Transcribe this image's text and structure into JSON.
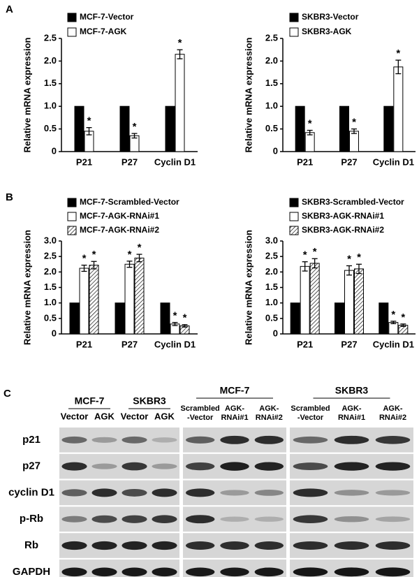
{
  "panel_labels": [
    "A",
    "B",
    "C"
  ],
  "chart_data": [
    {
      "type": "bar",
      "ylabel": "Relative mRNA expression",
      "categories": [
        "P21",
        "P27",
        "Cyclin D1"
      ],
      "ylim": [
        0,
        2.5
      ],
      "yticks": [
        0,
        0.5,
        {
          "value": 1,
          "label": "1.0"
        },
        1.5,
        {
          "value": 2,
          "label": "2.0"
        },
        2.5
      ],
      "legend": "upper left",
      "series": [
        {
          "name": "MCF-7-Vector",
          "color": "#000000",
          "values": [
            1,
            1,
            1
          ]
        },
        {
          "name": "MCF-7-AGK",
          "color": "#ffffff",
          "values": [
            0.45,
            0.35,
            2.15
          ],
          "errors": [
            0.08,
            0.05,
            0.1
          ],
          "markers": [
            "*",
            "*",
            "*"
          ]
        }
      ]
    },
    {
      "type": "bar",
      "ylabel": "Relative mRNA expression",
      "categories": [
        "P21",
        "P27",
        "Cyclin D1"
      ],
      "ylim": [
        0,
        2.5
      ],
      "yticks": [
        0,
        0.5,
        {
          "value": 1,
          "label": "1.0"
        },
        1.5,
        {
          "value": 2,
          "label": "2.0"
        },
        2.5
      ],
      "legend": "upper left",
      "series": [
        {
          "name": "SKBR3-Vector",
          "color": "#000000",
          "values": [
            1,
            1,
            1
          ]
        },
        {
          "name": "SKBR3-AGK",
          "color": "#ffffff",
          "values": [
            0.42,
            0.45,
            1.87
          ],
          "errors": [
            0.05,
            0.05,
            0.15
          ],
          "markers": [
            "*",
            "*",
            "*"
          ]
        }
      ]
    },
    {
      "type": "bar",
      "ylabel": "Relative mRNA expression",
      "categories": [
        "P21",
        "P27",
        "Cyclin D1"
      ],
      "ylim": [
        0,
        3
      ],
      "yticks": [
        0,
        0.5,
        {
          "value": 1,
          "label": "1.0"
        },
        1.5,
        {
          "value": 2,
          "label": "2.0"
        },
        2.5,
        {
          "value": 3,
          "label": "3.0"
        }
      ],
      "legend": "upper left",
      "series": [
        {
          "name": "MCF-7-Scrambled-Vector",
          "color": "#000000",
          "values": [
            1,
            1,
            1
          ]
        },
        {
          "name": "MCF-7-AGK-RNAi#1",
          "color": "#ffffff",
          "values": [
            2.12,
            2.25,
            0.32
          ],
          "errors": [
            0.1,
            0.1,
            0.05
          ],
          "markers": [
            "*",
            "*",
            "*"
          ]
        },
        {
          "name": "MCF-7-AGK-RNAi#2",
          "color": "#ffffff",
          "hatched": true,
          "values": [
            2.22,
            2.45,
            0.26
          ],
          "errors": [
            0.12,
            0.12,
            0.04
          ],
          "markers": [
            "*",
            "*",
            "*"
          ]
        }
      ]
    },
    {
      "type": "bar",
      "ylabel": "Relative mRNA expression",
      "categories": [
        "P21",
        "P27",
        "Cyclin D1"
      ],
      "ylim": [
        0,
        3
      ],
      "yticks": [
        0,
        0.5,
        {
          "value": 1,
          "label": "1.0"
        },
        1.5,
        {
          "value": 2,
          "label": "2.0"
        },
        2.5,
        {
          "value": 3,
          "label": "3.0"
        }
      ],
      "legend": "upper left",
      "series": [
        {
          "name": "SKBR3-Scrambled-Vector",
          "color": "#000000",
          "values": [
            1,
            1,
            1
          ]
        },
        {
          "name": "SKBR3-AGK-RNAi#1",
          "color": "#ffffff",
          "values": [
            2.18,
            2.05,
            0.37
          ],
          "errors": [
            0.15,
            0.15,
            0.04
          ],
          "markers": [
            "*",
            "*",
            "*"
          ]
        },
        {
          "name": "SKBR3-AGK-RNAi#2",
          "color": "#ffffff",
          "hatched": true,
          "values": [
            2.28,
            2.1,
            0.28
          ],
          "errors": [
            0.15,
            0.15,
            0.04
          ],
          "markers": [
            "*",
            "*",
            "*"
          ]
        }
      ]
    }
  ],
  "blot": {
    "rows": [
      "p21",
      "p27",
      "cyclin D1",
      "p-Rb",
      "Rb",
      "GAPDH"
    ],
    "blocks": [
      {
        "groups": [
          {
            "name": "MCF-7",
            "lanes": [
              [
                "Vector"
              ],
              [
                "AGK"
              ]
            ]
          },
          {
            "name": "SKBR3",
            "lanes": [
              [
                "Vector"
              ],
              [
                "AGK"
              ]
            ]
          }
        ]
      },
      {
        "groups": [
          {
            "name": "MCF-7",
            "lanes": [
              [
                "Scrambled",
                "-Vector"
              ],
              [
                "AGK-",
                "RNAi#1"
              ],
              [
                "AGK-",
                "RNAi#2"
              ]
            ]
          }
        ]
      },
      {
        "groups": [
          {
            "name": "SKBR3",
            "lanes": [
              [
                "Scrambled",
                "-Vector"
              ],
              [
                "AGK-",
                "RNAi#1"
              ],
              [
                "AGK-",
                "RNAi#2"
              ]
            ]
          }
        ]
      }
    ]
  }
}
